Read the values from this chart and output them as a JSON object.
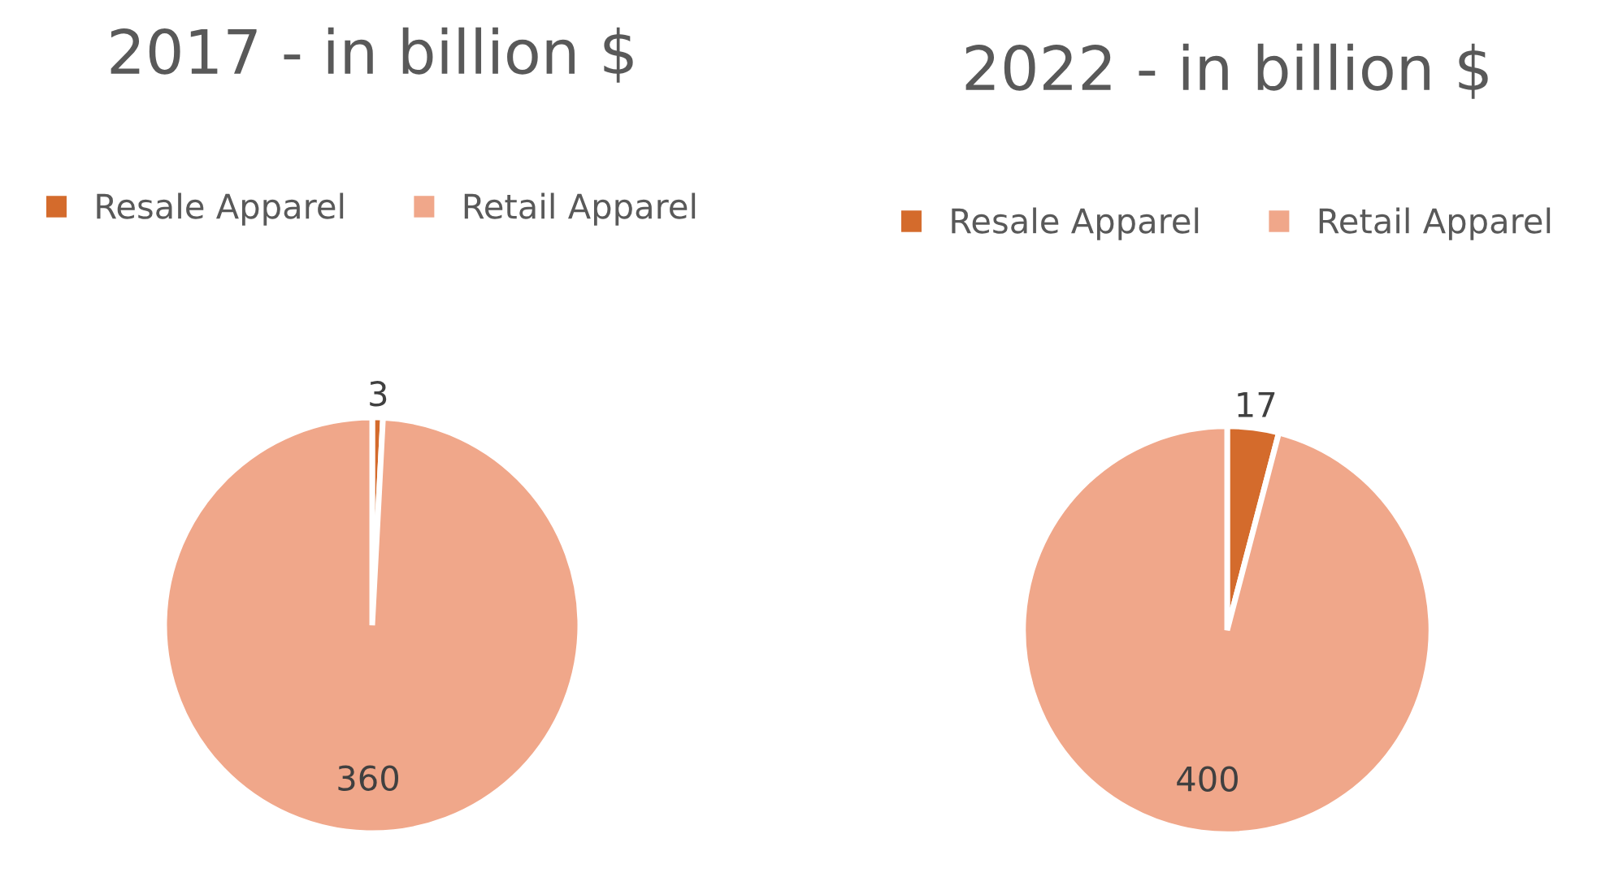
{
  "chart_data": [
    {
      "type": "pie",
      "title": "2017 - in billion $",
      "categories": [
        "Resale Apparel",
        "Retail Apparel"
      ],
      "values": [
        3,
        360
      ],
      "colors": [
        "#d46b2c",
        "#f0a78a"
      ],
      "data_labels": true,
      "legend": "top"
    },
    {
      "type": "pie",
      "title": "2022 - in billion $",
      "categories": [
        "Resale Apparel",
        "Retail Apparel"
      ],
      "values": [
        17,
        400
      ],
      "colors": [
        "#d46b2c",
        "#f0a78a"
      ],
      "data_labels": true,
      "legend": "top"
    }
  ]
}
